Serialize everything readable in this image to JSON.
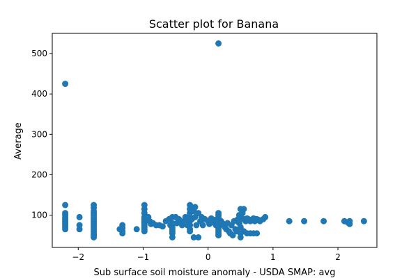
{
  "chart_data": {
    "type": "scatter",
    "title": "Scatter plot for Banana",
    "xlabel": "Sub surface soil moisture anomaly - USDA SMAP: avg",
    "ylabel": "Average",
    "xlim": [
      -2.4,
      2.6
    ],
    "ylim": [
      20,
      550
    ],
    "xticks": [
      -2,
      -1,
      0,
      1,
      2
    ],
    "yticks": [
      100,
      200,
      300,
      400,
      500
    ],
    "grid": false,
    "marker_color": "#1f77b4",
    "points": [
      [
        -2.2,
        425
      ],
      [
        -2.2,
        125
      ],
      [
        -2.2,
        105
      ],
      [
        -2.2,
        100
      ],
      [
        -2.2,
        95
      ],
      [
        -2.2,
        90
      ],
      [
        -2.2,
        85
      ],
      [
        -2.2,
        80
      ],
      [
        -2.2,
        75
      ],
      [
        -2.2,
        70
      ],
      [
        -2.2,
        65
      ],
      [
        -1.98,
        95
      ],
      [
        -1.98,
        75
      ],
      [
        -1.98,
        65
      ],
      [
        -1.76,
        125
      ],
      [
        -1.76,
        118
      ],
      [
        -1.76,
        110
      ],
      [
        -1.76,
        105
      ],
      [
        -1.76,
        100
      ],
      [
        -1.76,
        95
      ],
      [
        -1.76,
        90
      ],
      [
        -1.76,
        85
      ],
      [
        -1.76,
        80
      ],
      [
        -1.76,
        75
      ],
      [
        -1.76,
        70
      ],
      [
        -1.76,
        65
      ],
      [
        -1.76,
        60
      ],
      [
        -1.76,
        55
      ],
      [
        -1.76,
        50
      ],
      [
        -1.76,
        45
      ],
      [
        -1.32,
        75
      ],
      [
        -1.32,
        68
      ],
      [
        -1.32,
        60
      ],
      [
        -1.32,
        55
      ],
      [
        -1.36,
        65
      ],
      [
        -1.1,
        65
      ],
      [
        -0.98,
        125
      ],
      [
        -0.98,
        115
      ],
      [
        -0.98,
        105
      ],
      [
        -0.98,
        95
      ],
      [
        -0.98,
        90
      ],
      [
        -0.98,
        85
      ],
      [
        -0.98,
        80
      ],
      [
        -0.98,
        75
      ],
      [
        -0.98,
        70
      ],
      [
        -0.98,
        65
      ],
      [
        -0.98,
        60
      ],
      [
        -0.92,
        95
      ],
      [
        -0.9,
        85
      ],
      [
        -0.88,
        78
      ],
      [
        -0.85,
        80
      ],
      [
        -0.8,
        75
      ],
      [
        -0.75,
        75
      ],
      [
        -0.7,
        72
      ],
      [
        -0.65,
        85
      ],
      [
        -0.6,
        90
      ],
      [
        -0.58,
        75
      ],
      [
        -0.55,
        95
      ],
      [
        -0.55,
        80
      ],
      [
        -0.55,
        70
      ],
      [
        -0.55,
        65
      ],
      [
        -0.55,
        60
      ],
      [
        -0.55,
        55
      ],
      [
        -0.55,
        45
      ],
      [
        -0.5,
        95
      ],
      [
        -0.48,
        80
      ],
      [
        -0.45,
        90
      ],
      [
        -0.42,
        85
      ],
      [
        -0.4,
        75
      ],
      [
        -0.38,
        82
      ],
      [
        -0.35,
        95
      ],
      [
        -0.32,
        75
      ],
      [
        -0.3,
        88
      ],
      [
        -0.28,
        125
      ],
      [
        -0.28,
        115
      ],
      [
        -0.28,
        105
      ],
      [
        -0.28,
        95
      ],
      [
        -0.28,
        85
      ],
      [
        -0.28,
        75
      ],
      [
        -0.28,
        65
      ],
      [
        -0.28,
        60
      ],
      [
        -0.25,
        90
      ],
      [
        -0.22,
        110
      ],
      [
        -0.2,
        120
      ],
      [
        -0.2,
        95
      ],
      [
        -0.18,
        75
      ],
      [
        -0.15,
        105
      ],
      [
        -0.12,
        85
      ],
      [
        -0.1,
        95
      ],
      [
        -0.08,
        75
      ],
      [
        -0.22,
        45
      ],
      [
        -0.15,
        45
      ],
      [
        -0.05,
        90
      ],
      [
        0.0,
        85
      ],
      [
        0.02,
        78
      ],
      [
        0.05,
        92
      ],
      [
        0.08,
        82
      ],
      [
        0.1,
        88
      ],
      [
        0.12,
        75
      ],
      [
        0.14,
        80
      ],
      [
        0.16,
        525
      ],
      [
        0.16,
        105
      ],
      [
        0.16,
        100
      ],
      [
        0.16,
        95
      ],
      [
        0.16,
        90
      ],
      [
        0.16,
        85
      ],
      [
        0.16,
        80
      ],
      [
        0.16,
        75
      ],
      [
        0.16,
        70
      ],
      [
        0.16,
        65
      ],
      [
        0.16,
        60
      ],
      [
        0.16,
        55
      ],
      [
        0.16,
        50
      ],
      [
        0.2,
        85
      ],
      [
        0.22,
        80
      ],
      [
        0.24,
        75
      ],
      [
        0.26,
        70
      ],
      [
        0.28,
        65
      ],
      [
        0.3,
        80
      ],
      [
        0.32,
        60
      ],
      [
        0.34,
        55
      ],
      [
        0.36,
        75
      ],
      [
        0.38,
        50
      ],
      [
        0.4,
        85
      ],
      [
        0.42,
        65
      ],
      [
        0.44,
        60
      ],
      [
        0.46,
        90
      ],
      [
        0.48,
        100
      ],
      [
        0.48,
        80
      ],
      [
        0.5,
        115
      ],
      [
        0.5,
        95
      ],
      [
        0.5,
        70
      ],
      [
        0.5,
        55
      ],
      [
        0.5,
        45
      ],
      [
        0.53,
        105
      ],
      [
        0.55,
        115
      ],
      [
        0.55,
        90
      ],
      [
        0.55,
        60
      ],
      [
        0.58,
        85
      ],
      [
        0.6,
        92
      ],
      [
        0.6,
        55
      ],
      [
        0.62,
        90
      ],
      [
        0.65,
        85
      ],
      [
        0.65,
        55
      ],
      [
        0.68,
        88
      ],
      [
        0.7,
        92
      ],
      [
        0.7,
        55
      ],
      [
        0.72,
        85
      ],
      [
        0.75,
        90
      ],
      [
        0.75,
        55
      ],
      [
        0.78,
        88
      ],
      [
        0.8,
        85
      ],
      [
        0.85,
        90
      ],
      [
        0.88,
        95
      ],
      [
        1.25,
        85
      ],
      [
        1.48,
        85
      ],
      [
        1.78,
        85
      ],
      [
        2.1,
        85
      ],
      [
        2.15,
        82
      ],
      [
        2.18,
        78
      ],
      [
        2.18,
        85
      ],
      [
        2.4,
        85
      ]
    ]
  }
}
